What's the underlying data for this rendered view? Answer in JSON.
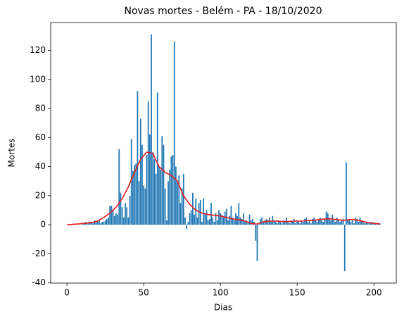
{
  "chart_data": {
    "type": "bar",
    "title": "Novas mortes - Belém - PA - 18/10/2020",
    "xlabel": "Dias",
    "ylabel": "Mortes",
    "xlim": [
      -10.6,
      214.6
    ],
    "ylim": [
      -40.15,
      139.15
    ],
    "xticks": [
      0,
      50,
      100,
      150,
      200
    ],
    "yticks": [
      -40,
      -20,
      0,
      20,
      40,
      60,
      80,
      100,
      120
    ],
    "series": [
      {
        "type": "bar",
        "color": "#1f77b4",
        "x": [
          0,
          1,
          2,
          3,
          4,
          5,
          6,
          7,
          8,
          9,
          10,
          11,
          12,
          13,
          14,
          15,
          16,
          17,
          18,
          19,
          20,
          21,
          22,
          23,
          24,
          25,
          26,
          27,
          28,
          29,
          30,
          31,
          32,
          33,
          34,
          35,
          36,
          37,
          38,
          39,
          40,
          41,
          42,
          43,
          44,
          45,
          46,
          47,
          48,
          49,
          50,
          51,
          52,
          53,
          54,
          55,
          56,
          57,
          58,
          59,
          60,
          61,
          62,
          63,
          64,
          65,
          66,
          67,
          68,
          69,
          70,
          71,
          72,
          73,
          74,
          75,
          76,
          77,
          78,
          79,
          80,
          81,
          82,
          83,
          84,
          85,
          86,
          87,
          88,
          89,
          90,
          91,
          92,
          93,
          94,
          95,
          96,
          97,
          98,
          99,
          100,
          101,
          102,
          103,
          104,
          105,
          106,
          107,
          108,
          109,
          110,
          111,
          112,
          113,
          114,
          115,
          116,
          117,
          118,
          119,
          120,
          121,
          122,
          123,
          124,
          125,
          126,
          127,
          128,
          129,
          130,
          131,
          132,
          133,
          134,
          135,
          136,
          137,
          138,
          139,
          140,
          141,
          142,
          143,
          144,
          145,
          146,
          147,
          148,
          149,
          150,
          151,
          152,
          153,
          154,
          155,
          156,
          157,
          158,
          159,
          160,
          161,
          162,
          163,
          164,
          165,
          166,
          167,
          168,
          169,
          170,
          171,
          172,
          173,
          174,
          175,
          176,
          177,
          178,
          179,
          180,
          181,
          182,
          183,
          184,
          185,
          186,
          187,
          188,
          189,
          190,
          191,
          192,
          193,
          194,
          195,
          196,
          197,
          198,
          199,
          200,
          201,
          202,
          203,
          204
        ],
        "values": [
          0,
          0,
          0,
          0,
          0,
          0,
          0,
          0,
          0,
          0,
          1,
          1,
          2,
          1,
          1,
          2,
          2,
          1,
          3,
          2,
          2,
          3,
          1,
          2,
          2,
          3,
          4,
          5,
          13,
          13,
          10,
          6,
          8,
          7,
          52,
          22,
          12,
          5,
          15,
          12,
          5,
          20,
          59,
          37,
          41,
          42,
          92,
          30,
          73,
          55,
          27,
          25,
          48,
          85,
          62,
          131,
          50,
          45,
          35,
          91,
          40,
          38,
          61,
          55,
          25,
          3,
          30,
          38,
          47,
          48,
          126,
          40,
          29,
          34,
          15,
          25,
          35,
          5,
          -3,
          2,
          8,
          10,
          22,
          7,
          18,
          5,
          15,
          17,
          2,
          18,
          8,
          10,
          3,
          4,
          15,
          5,
          2,
          8,
          3,
          10,
          8,
          7,
          5,
          9,
          11,
          3,
          6,
          13,
          5,
          3,
          8,
          6,
          15,
          5,
          4,
          8,
          2,
          3,
          1,
          7,
          3,
          4,
          2,
          -11,
          -25,
          1,
          4,
          5,
          2,
          3,
          4,
          3,
          5,
          2,
          6,
          3,
          2,
          1,
          3,
          2,
          1,
          3,
          2,
          5,
          2,
          1,
          3,
          2,
          4,
          1,
          3,
          2,
          1,
          3,
          2,
          4,
          5,
          2,
          3,
          1,
          4,
          5,
          3,
          2,
          4,
          5,
          3,
          2,
          4,
          9,
          8,
          5,
          3,
          7,
          4,
          2,
          5,
          3,
          2,
          3,
          4,
          -32,
          43,
          3,
          4,
          2,
          3,
          1,
          5,
          4,
          2,
          5,
          3,
          2,
          1,
          2,
          1,
          2,
          1,
          2,
          1,
          1,
          1,
          1,
          1
        ]
      },
      {
        "type": "line",
        "color": "#e41a1c",
        "x": [
          0,
          4,
          8,
          12,
          16,
          20,
          24,
          28,
          32,
          36,
          40,
          44,
          48,
          52,
          56,
          60,
          64,
          68,
          72,
          76,
          80,
          84,
          88,
          92,
          96,
          100,
          104,
          108,
          112,
          116,
          120,
          124,
          128,
          132,
          136,
          140,
          144,
          148,
          152,
          156,
          160,
          164,
          168,
          172,
          176,
          180,
          184,
          188,
          192,
          196,
          200,
          204
        ],
        "values": [
          0,
          0.3,
          0.6,
          1,
          1.5,
          2.5,
          5,
          8,
          12,
          18,
          26,
          36,
          45,
          50,
          49,
          40,
          36,
          34,
          30,
          20,
          14,
          10,
          8,
          7,
          6.5,
          6,
          5,
          4,
          3.5,
          2.5,
          0.8,
          0.5,
          2,
          2.5,
          2.5,
          2.3,
          2.2,
          2.5,
          2.5,
          2.8,
          3,
          3.5,
          4,
          4,
          3.5,
          3,
          3.5,
          3.5,
          2.5,
          1.5,
          1,
          0.5
        ]
      }
    ]
  }
}
